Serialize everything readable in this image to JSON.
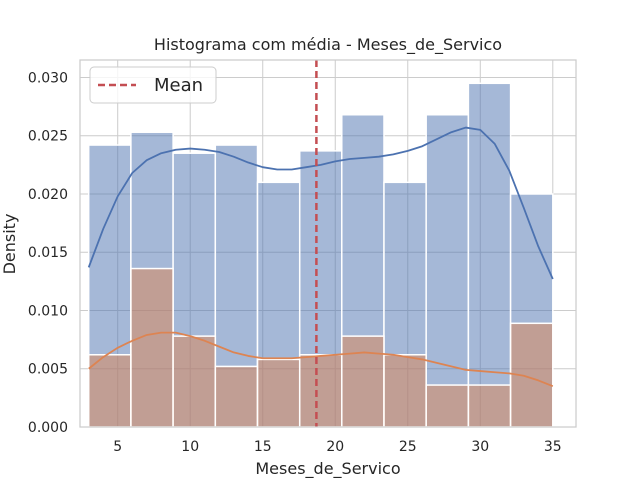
{
  "chart_data": {
    "type": "histogram",
    "title": "Histograma com média - Meses_de_Servico",
    "xlabel": "Meses_de_Servico",
    "ylabel": "Density",
    "xlim": [
      2.4,
      36.6
    ],
    "ylim": [
      0,
      0.0315
    ],
    "xticks": [
      5,
      10,
      15,
      20,
      25,
      30,
      35
    ],
    "xtick_labels": [
      "5",
      "10",
      "15",
      "20",
      "25",
      "30",
      "35"
    ],
    "yticks": [
      0.0,
      0.005,
      0.01,
      0.015,
      0.02,
      0.025,
      0.03
    ],
    "ytick_labels": [
      "0.000",
      "0.005",
      "0.010",
      "0.015",
      "0.020",
      "0.025",
      "0.030"
    ],
    "grid": true,
    "bin_edges": [
      3.0,
      5.91,
      8.82,
      11.73,
      14.64,
      17.55,
      20.45,
      23.36,
      26.27,
      29.18,
      32.09,
      35.0
    ],
    "series": [
      {
        "color": "#4c72b0",
        "bar_values": [
          0.0242,
          0.0253,
          0.0235,
          0.0242,
          0.021,
          0.0237,
          0.0268,
          0.021,
          0.0268,
          0.0295,
          0.02
        ],
        "kde": {
          "x": [
            3,
            4,
            5,
            6,
            7,
            8,
            9,
            10,
            11,
            12,
            13,
            14,
            15,
            16,
            17,
            18,
            19,
            20,
            21,
            22,
            23,
            24,
            25,
            26,
            27,
            28,
            29,
            30,
            31,
            32,
            33,
            34,
            35
          ],
          "y": [
            0.0137,
            0.017,
            0.0198,
            0.0218,
            0.0229,
            0.0235,
            0.0238,
            0.0239,
            0.0238,
            0.0236,
            0.0232,
            0.0227,
            0.0223,
            0.0221,
            0.0221,
            0.0223,
            0.0225,
            0.0228,
            0.023,
            0.0231,
            0.0232,
            0.0234,
            0.0237,
            0.0241,
            0.0247,
            0.0253,
            0.0257,
            0.0255,
            0.0243,
            0.022,
            0.0188,
            0.0155,
            0.0127
          ]
        }
      },
      {
        "color": "#dd8452",
        "bar_values": [
          0.0062,
          0.0136,
          0.0078,
          0.0052,
          0.0058,
          0.0062,
          0.0078,
          0.0062,
          0.0036,
          0.0036,
          0.0089
        ],
        "kde": {
          "x": [
            3,
            4,
            5,
            6,
            7,
            8,
            9,
            10,
            11,
            12,
            13,
            14,
            15,
            16,
            17,
            18,
            19,
            20,
            21,
            22,
            23,
            24,
            25,
            26,
            27,
            28,
            29,
            30,
            31,
            32,
            33,
            34,
            35
          ],
          "y": [
            0.005,
            0.006,
            0.0068,
            0.0074,
            0.0079,
            0.0081,
            0.0081,
            0.0078,
            0.0074,
            0.0069,
            0.0064,
            0.0061,
            0.0059,
            0.0059,
            0.0059,
            0.006,
            0.0061,
            0.0062,
            0.0063,
            0.0064,
            0.0063,
            0.0062,
            0.006,
            0.0058,
            0.0055,
            0.0052,
            0.0049,
            0.0048,
            0.0047,
            0.0046,
            0.0044,
            0.004,
            0.0035
          ]
        }
      }
    ],
    "mean_line": {
      "x": 18.7,
      "color": "#c44e52",
      "label": "Mean"
    },
    "legend": {
      "location": "top-left",
      "entries": [
        "Mean"
      ]
    }
  },
  "colors": {
    "grid": "#cccccc",
    "axes_edge": "#cccccc",
    "bar_edge": "#ffffff",
    "background": "#ffffff"
  }
}
